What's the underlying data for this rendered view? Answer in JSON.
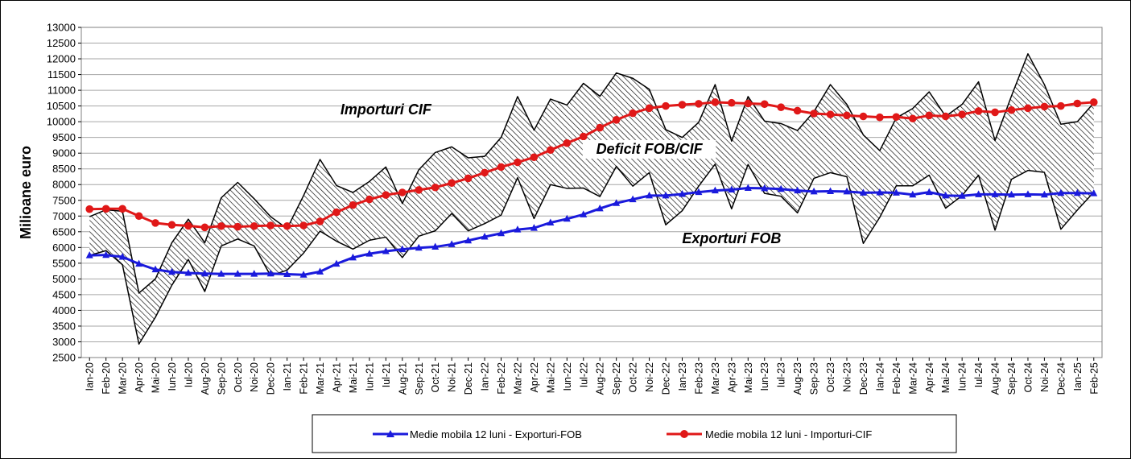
{
  "chart_data": {
    "type": "line",
    "title": "",
    "ylabel": "Milioane  euro",
    "xlabel": "",
    "ylim": [
      2500,
      13000
    ],
    "ytick_step": 500,
    "grid": "horizontal",
    "legend_position": "bottom",
    "categories": [
      "Ian-20",
      "Feb-20",
      "Mar-20",
      "Apr-20",
      "Mai-20",
      "Iun-20",
      "Iul-20",
      "Aug-20",
      "Sep-20",
      "Oct-20",
      "Noi-20",
      "Dec-20",
      "Ian-21",
      "Feb-21",
      "Mar-21",
      "Apr-21",
      "Mai-21",
      "Iun-21",
      "Iul-21",
      "Aug-21",
      "Sep-21",
      "Oct-21",
      "Noi-21",
      "Dec-21",
      "Ian-22",
      "Feb-22",
      "Mar-22",
      "Apr-22",
      "Mai-22",
      "Iun-22",
      "Iul-22",
      "Aug-22",
      "Sep-22",
      "Oct-22",
      "Noi-22",
      "Dec-22",
      "Ian-23",
      "Feb-23",
      "Mar-23",
      "Apr-23",
      "Mai-23",
      "Iun-23",
      "Iul-23",
      "Aug-23",
      "Sep-23",
      "Oct-23",
      "Noi-23",
      "Dec-23",
      "Ian-24",
      "Feb-24",
      "Mar-24",
      "Apr-24",
      "Mai-24",
      "Iun-24",
      "Iul-24",
      "Aug-24",
      "Sep-24",
      "Oct-24",
      "Noi-24",
      "Dec-24",
      "Ian-25",
      "Feb-25"
    ],
    "series": [
      {
        "name": "Importuri CIF",
        "role": "monthly-imports",
        "color": "#000000",
        "values": [
          6980,
          7200,
          7150,
          4550,
          5000,
          6150,
          6900,
          6150,
          7580,
          8070,
          7550,
          6980,
          6600,
          7650,
          8800,
          7970,
          7750,
          8100,
          8560,
          7400,
          8470,
          9020,
          9200,
          8850,
          8900,
          9500,
          10800,
          9730,
          10720,
          10530,
          11220,
          10810,
          11550,
          11380,
          11030,
          9750,
          9500,
          9980,
          11180,
          9380,
          10800,
          10020,
          9940,
          9720,
          10320,
          11180,
          10550,
          9580,
          9080,
          10120,
          10420,
          10950,
          10170,
          10550,
          11270,
          9400,
          10820,
          12160,
          11180,
          9920,
          10000,
          10600
        ]
      },
      {
        "name": "Exporturi FOB",
        "role": "monthly-exports",
        "color": "#000000",
        "values": [
          5750,
          5900,
          5450,
          2930,
          3780,
          4800,
          5620,
          4600,
          6050,
          6270,
          6050,
          5100,
          5280,
          5820,
          6520,
          6200,
          5950,
          6230,
          6330,
          5680,
          6360,
          6530,
          7080,
          6530,
          6760,
          7030,
          8220,
          6920,
          8000,
          7880,
          7890,
          7620,
          8580,
          7950,
          8380,
          6720,
          7170,
          7950,
          8650,
          7230,
          8640,
          7720,
          7630,
          7100,
          8200,
          8380,
          8250,
          6130,
          6960,
          7960,
          7960,
          8300,
          7250,
          7650,
          8300,
          6550,
          8170,
          8450,
          8390,
          6580,
          7190,
          7760
        ]
      },
      {
        "name": "Medie mobila 12 luni - Exporturi-FOB",
        "role": "moving-average-exports",
        "color": "#1a1adc",
        "values": [
          5750,
          5760,
          5700,
          5480,
          5300,
          5220,
          5190,
          5170,
          5160,
          5160,
          5160,
          5170,
          5150,
          5130,
          5230,
          5480,
          5680,
          5800,
          5880,
          5940,
          5990,
          6020,
          6100,
          6220,
          6340,
          6450,
          6570,
          6620,
          6790,
          6910,
          7050,
          7240,
          7410,
          7530,
          7650,
          7650,
          7700,
          7760,
          7810,
          7840,
          7890,
          7880,
          7860,
          7810,
          7780,
          7790,
          7780,
          7740,
          7750,
          7740,
          7680,
          7760,
          7650,
          7640,
          7690,
          7690,
          7680,
          7690,
          7680,
          7730,
          7730,
          7720
        ]
      },
      {
        "name": "Medie mobila 12 luni - Importuri-CIF",
        "role": "moving-average-imports",
        "color": "#e01818",
        "values": [
          7220,
          7230,
          7230,
          7000,
          6780,
          6720,
          6690,
          6640,
          6680,
          6660,
          6680,
          6700,
          6680,
          6700,
          6830,
          7120,
          7350,
          7530,
          7670,
          7750,
          7830,
          7910,
          8050,
          8200,
          8380,
          8560,
          8710,
          8870,
          9100,
          9320,
          9530,
          9810,
          10060,
          10270,
          10430,
          10500,
          10540,
          10570,
          10620,
          10600,
          10580,
          10560,
          10460,
          10350,
          10260,
          10230,
          10200,
          10170,
          10140,
          10150,
          10100,
          10200,
          10170,
          10230,
          10340,
          10300,
          10370,
          10430,
          10480,
          10500,
          10580,
          10620
        ]
      }
    ],
    "annotations": [
      {
        "text": "Importuri CIF",
        "at_category": "Iul-21",
        "at_value": 10230
      },
      {
        "text": "Deficit FOB/CIF",
        "at_category": "Noi-22",
        "at_value": 8980
      },
      {
        "text": "Exporturi FOB",
        "at_category": "Apr-23",
        "at_value": 6140
      }
    ]
  },
  "legend": {
    "exports_ma_label": "Medie mobila 12 luni - Exporturi-FOB",
    "imports_ma_label": "Medie mobila 12 luni - Importuri-CIF"
  }
}
